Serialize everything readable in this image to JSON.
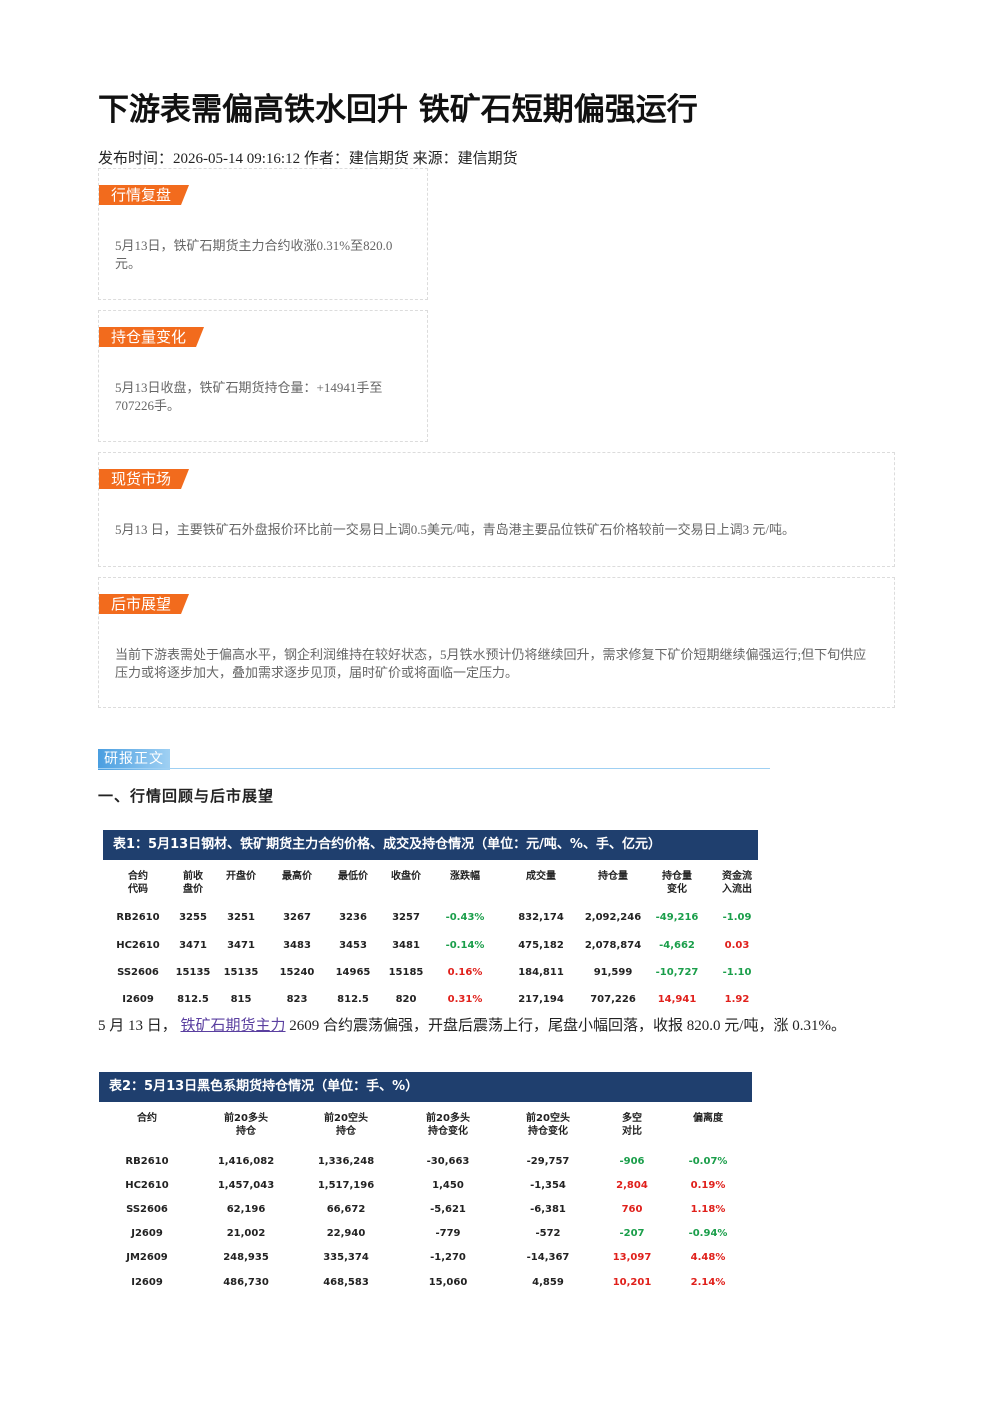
{
  "header": {
    "title": "下游表需偏高铁水回升 铁矿石短期偏强运行",
    "meta": "发布时间：2026-05-14 09:16:12 作者：建信期货 来源：建信期货"
  },
  "sections": [
    {
      "label": "行情复盘",
      "text": "5月13日，铁矿石期货主力合约收涨0.31%至820.0元。"
    },
    {
      "label": "持仓量变化",
      "text": "5月13日收盘，铁矿石期货持仓量：+14941手至707226手。"
    },
    {
      "label": "现货市场",
      "text": "5月13 日，主要铁矿石外盘报价环比前一交易日上调0.5美元/吨，青岛港主要品位铁矿石价格较前一交易日上调3 元/吨。"
    },
    {
      "label": "后市展望",
      "text": "当前下游表需处于偏高水平，钢企利润维持在较好状态，5月铁水预计仍将继续回升，需求修复下矿价短期继续偏强运行;但下旬供应压力或将逐步加大，叠加需求逐步见顶，届时矿价或将面临一定压力。"
    }
  ],
  "report_tag": "研报正文",
  "heading": "一、行情回顾与后市展望",
  "table1": {
    "title": "表1：5月13日钢材、铁矿期货主力合约价格、成交及持仓情况（单位：元/吨、%、手、亿元）",
    "headers": [
      "合约\n代码",
      "前收\n盘价",
      "开盘价",
      "最高价",
      "最低价",
      "收盘价",
      "涨跌幅",
      "成交量",
      "持仓量",
      "持仓量\n变化",
      "资金流\n入流出"
    ],
    "rows": [
      [
        "RB2610",
        "3255",
        "3251",
        "3267",
        "3236",
        "3257",
        "-0.43%",
        "832,174",
        "2,092,246",
        "-49,216",
        "-1.09"
      ],
      [
        "HC2610",
        "3471",
        "3471",
        "3483",
        "3453",
        "3481",
        "-0.14%",
        "475,182",
        "2,078,874",
        "-4,662",
        "0.03"
      ],
      [
        "SS2606",
        "15135",
        "15135",
        "15240",
        "14965",
        "15185",
        "0.16%",
        "184,811",
        "91,599",
        "-10,727",
        "-1.10"
      ],
      [
        "I2609",
        "812.5",
        "815",
        "823",
        "812.5",
        "820",
        "0.31%",
        "217,194",
        "707,226",
        "14,941",
        "1.92"
      ]
    ]
  },
  "paragraph": {
    "before": "5 月 13 日，",
    "link": "铁矿石期货主力",
    "after": "2609 合约震荡偏强，开盘后震荡上行，尾盘小幅回落，收报 820.0 元/吨，涨 0.31%。"
  },
  "table2": {
    "title": "表2：5月13日黑色系期货持仓情况（单位：手、%）",
    "headers": [
      "合约",
      "前20多头\n持仓",
      "前20空头\n持仓",
      "前20多头\n持仓变化",
      "前20空头\n持仓变化",
      "多空\n对比",
      "偏离度"
    ],
    "rows": [
      [
        "RB2610",
        "1,416,082",
        "1,336,248",
        "-30,663",
        "-29,757",
        "-906",
        "-0.07%"
      ],
      [
        "HC2610",
        "1,457,043",
        "1,517,196",
        "1,450",
        "-1,354",
        "2,804",
        "0.19%"
      ],
      [
        "SS2606",
        "62,196",
        "66,672",
        "-5,621",
        "-6,381",
        "760",
        "1.18%"
      ],
      [
        "J2609",
        "21,002",
        "22,940",
        "-779",
        "-572",
        "-207",
        "-0.94%"
      ],
      [
        "JM2609",
        "248,935",
        "335,374",
        "-1,270",
        "-14,367",
        "13,097",
        "4.48%"
      ],
      [
        "I2609",
        "486,730",
        "468,583",
        "15,060",
        "4,859",
        "10,201",
        "2.14%"
      ]
    ]
  }
}
